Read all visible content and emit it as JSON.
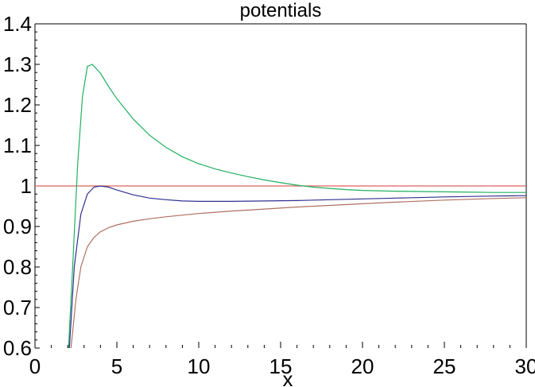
{
  "chart_data": {
    "type": "line",
    "title": "potentials",
    "xlabel": "x",
    "ylabel": "",
    "xlim": [
      0,
      30
    ],
    "ylim": [
      0.6,
      1.4
    ],
    "x_ticks": [
      "0",
      "5",
      "10",
      "15",
      "20",
      "25",
      "30"
    ],
    "y_ticks": [
      "0.6",
      "0.7",
      "0.8",
      "0.9",
      "1",
      "1.1",
      "1.2",
      "1.3",
      "1.4"
    ],
    "grid": false,
    "series": [
      {
        "color": "#e06060",
        "x": [
          0,
          30
        ],
        "y": [
          1.0,
          1.0
        ]
      },
      {
        "color": "#20b060",
        "x": [
          2.05,
          2.3,
          2.6,
          2.9,
          3.2,
          3.5,
          4.0,
          4.5,
          5,
          6,
          7,
          8,
          9,
          10,
          11,
          12,
          13,
          14,
          15,
          16,
          17,
          18,
          19,
          20,
          22,
          24,
          26,
          28,
          30
        ],
        "y": [
          0.6,
          0.8,
          1.05,
          1.22,
          1.295,
          1.3,
          1.278,
          1.245,
          1.215,
          1.165,
          1.125,
          1.095,
          1.072,
          1.055,
          1.042,
          1.032,
          1.023,
          1.015,
          1.008,
          1.002,
          0.997,
          0.994,
          0.991,
          0.989,
          0.987,
          0.986,
          0.985,
          0.984,
          0.984
        ]
      },
      {
        "color": "#303090",
        "x": [
          2.1,
          2.4,
          2.8,
          3.2,
          3.6,
          4.0,
          4.5,
          5,
          6,
          7,
          8,
          9,
          10,
          11,
          12,
          14,
          16,
          18,
          20,
          22,
          25,
          28,
          30
        ],
        "y": [
          0.6,
          0.8,
          0.93,
          0.98,
          0.997,
          1.0,
          0.997,
          0.99,
          0.978,
          0.97,
          0.966,
          0.963,
          0.962,
          0.962,
          0.962,
          0.963,
          0.964,
          0.966,
          0.968,
          0.97,
          0.973,
          0.975,
          0.976
        ]
      },
      {
        "color": "#b07060",
        "x": [
          2.2,
          2.5,
          2.8,
          3.2,
          3.6,
          4.0,
          4.5,
          5,
          6,
          7,
          8,
          9,
          10,
          12,
          14,
          16,
          18,
          20,
          22,
          25,
          28,
          30
        ],
        "y": [
          0.6,
          0.72,
          0.8,
          0.85,
          0.873,
          0.887,
          0.897,
          0.904,
          0.913,
          0.919,
          0.924,
          0.928,
          0.932,
          0.938,
          0.943,
          0.948,
          0.952,
          0.956,
          0.96,
          0.965,
          0.969,
          0.971
        ]
      }
    ]
  }
}
